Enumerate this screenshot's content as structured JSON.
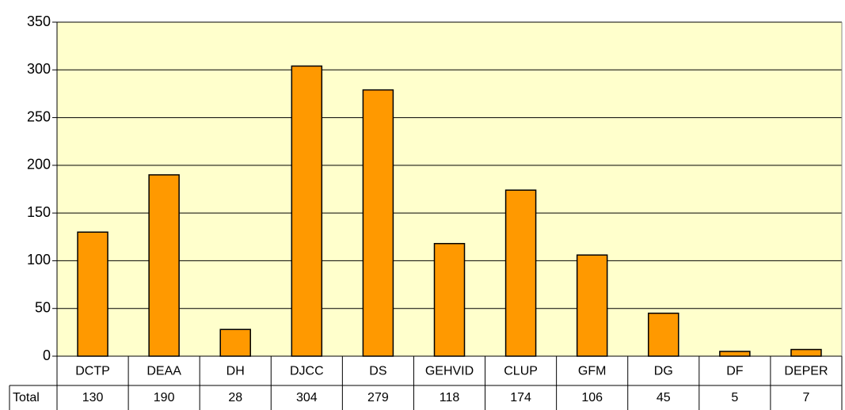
{
  "chart_data": {
    "type": "bar",
    "categories": [
      "DCTP",
      "DEAA",
      "DH",
      "DJCC",
      "DS",
      "GEHVID",
      "CLUP",
      "GFM",
      "DG",
      "DF",
      "DEPER"
    ],
    "series": [
      {
        "name": "Total",
        "color": "#ff9900",
        "values": [
          130,
          190,
          28,
          304,
          279,
          118,
          174,
          106,
          45,
          5,
          7
        ]
      }
    ],
    "ylim": [
      0,
      350
    ],
    "yticks": [
      0,
      50,
      100,
      150,
      200,
      250,
      300,
      350
    ],
    "grid": true,
    "plot_background": "#ffffcc"
  }
}
